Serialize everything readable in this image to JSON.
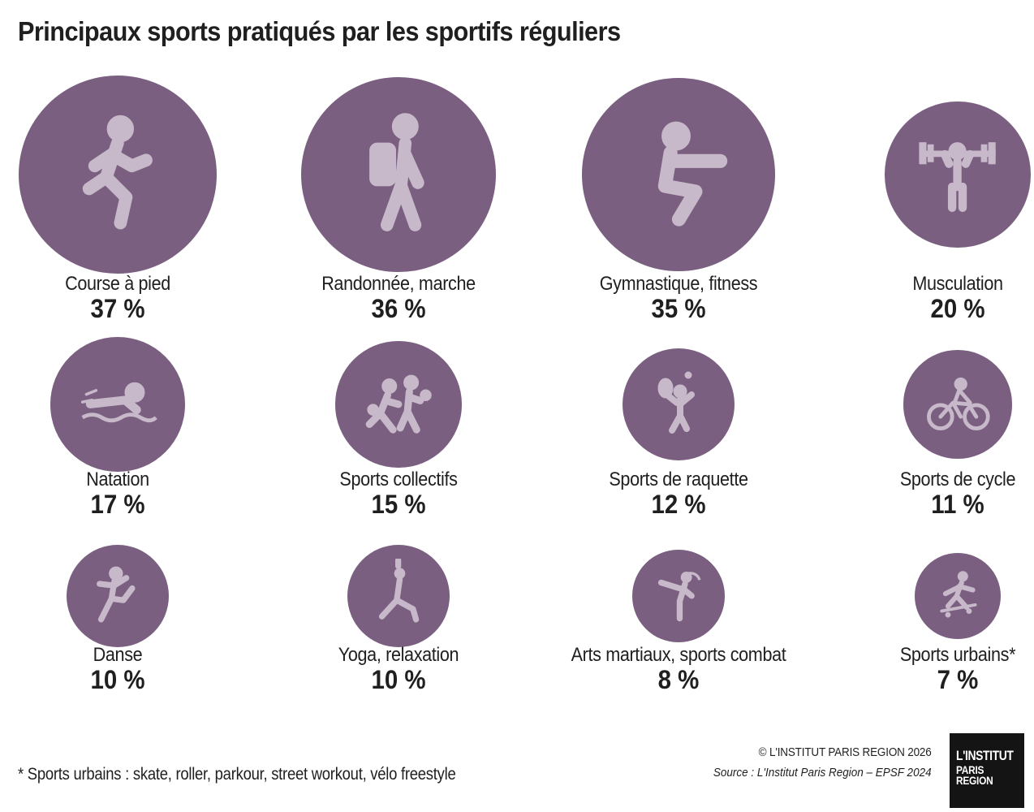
{
  "title": "Principaux sports pratiqués par les sportifs réguliers",
  "chart_data": {
    "type": "bubble",
    "unit": "%",
    "items": [
      {
        "label": "Course à pied",
        "value": 37,
        "display": "37 %",
        "icon": "runner-icon"
      },
      {
        "label": "Randonnée, marche",
        "value": 36,
        "display": "36 %",
        "icon": "hiker-icon"
      },
      {
        "label": "Gymnastique, fitness",
        "value": 35,
        "display": "35 %",
        "icon": "squat-icon"
      },
      {
        "label": "Musculation",
        "value": 20,
        "display": "20 %",
        "icon": "weightlifting-icon"
      },
      {
        "label": "Natation",
        "value": 17,
        "display": "17 %",
        "icon": "swimmer-icon"
      },
      {
        "label": "Sports collectifs",
        "value": 15,
        "display": "15 %",
        "icon": "team-sports-icon"
      },
      {
        "label": "Sports de raquette",
        "value": 12,
        "display": "12 %",
        "icon": "tennis-icon"
      },
      {
        "label": "Sports de cycle",
        "value": 11,
        "display": "11 %",
        "icon": "cyclist-icon"
      },
      {
        "label": "Danse",
        "value": 10,
        "display": "10 %",
        "icon": "dancer-icon"
      },
      {
        "label": "Yoga, relaxation",
        "value": 10,
        "display": "10 %",
        "icon": "yoga-icon"
      },
      {
        "label": "Arts martiaux, sports combat",
        "value": 8,
        "display": "8 %",
        "icon": "martial-arts-icon"
      },
      {
        "label": "Sports urbains*",
        "value": 7,
        "display": "7 %",
        "icon": "skateboarder-icon"
      }
    ]
  },
  "colors": {
    "circle": "#7a5f81",
    "icon": "#c7b9c9",
    "text": "#1f1f1f"
  },
  "footnote": "* Sports urbains : skate, roller, parkour, street workout, vélo freestyle",
  "copyright": "© L'INSTITUT PARIS REGION 2026",
  "source": "Source : L'Institut Paris Region – EPSF 2024",
  "logo": {
    "line1": "L'INSTITUT",
    "line2": "PARIS",
    "line3": "REGION"
  }
}
